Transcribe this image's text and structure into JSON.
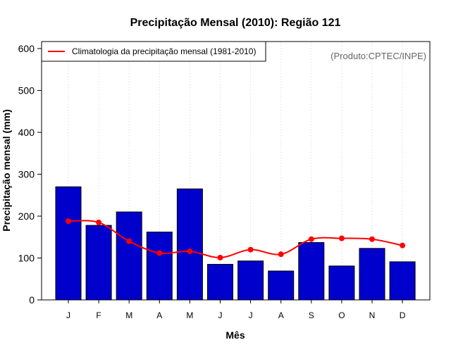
{
  "chart_data": {
    "type": "bar",
    "title": "Precipitação Mensal (2010): Região 121",
    "xlabel": "Mês",
    "ylabel": "Precipitação mensal (mm)",
    "ylim": [
      0,
      600
    ],
    "yticks": [
      0,
      100,
      200,
      300,
      400,
      500,
      600
    ],
    "grid": "vertical dotted",
    "credit": "(Produto:CPTEC/INPE)",
    "categories": [
      "J",
      "F",
      "M",
      "A",
      "M",
      "J",
      "J",
      "A",
      "S",
      "O",
      "N",
      "D"
    ],
    "series": [
      {
        "name": "Precipitação mensal 2010",
        "type": "bar",
        "color": "#0000cd",
        "values": [
          270,
          178,
          210,
          162,
          265,
          85,
          93,
          69,
          137,
          81,
          123,
          91
        ]
      },
      {
        "name": "Climatologia da precipitação mensal (1981-2010)",
        "type": "line",
        "color": "#ff0000",
        "values": [
          188,
          185,
          140,
          112,
          116,
          101,
          120,
          109,
          145,
          147,
          145,
          130
        ]
      }
    ],
    "legend": {
      "position": "top-left",
      "entries": [
        "Climatologia da precipitação mensal (1981-2010)"
      ]
    }
  }
}
